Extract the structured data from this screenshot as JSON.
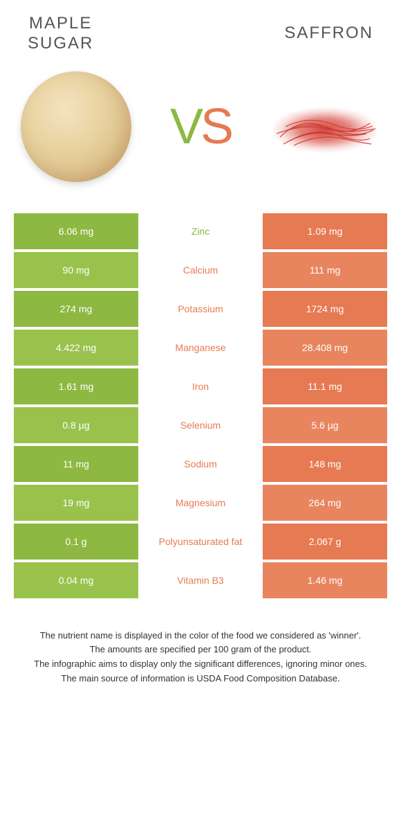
{
  "colors": {
    "green": "#8db842",
    "green_alt": "#99c24d",
    "orange": "#e67a52",
    "orange_alt": "#e8855f",
    "mid_text_green": "#8db842",
    "mid_text_orange": "#e67a52"
  },
  "header": {
    "left_title": "MAPLE\nSUGAR",
    "right_title": "SAFFRON",
    "v": "V",
    "s": "S"
  },
  "rows": [
    {
      "left": "6.06 mg",
      "mid": "Zinc",
      "right": "1.09 mg",
      "winner": "left"
    },
    {
      "left": "90 mg",
      "mid": "Calcium",
      "right": "111 mg",
      "winner": "right"
    },
    {
      "left": "274 mg",
      "mid": "Potassium",
      "right": "1724 mg",
      "winner": "right"
    },
    {
      "left": "4.422 mg",
      "mid": "Manganese",
      "right": "28.408 mg",
      "winner": "right"
    },
    {
      "left": "1.61 mg",
      "mid": "Iron",
      "right": "11.1 mg",
      "winner": "right"
    },
    {
      "left": "0.8 µg",
      "mid": "Selenium",
      "right": "5.6 µg",
      "winner": "right"
    },
    {
      "left": "11 mg",
      "mid": "Sodium",
      "right": "148 mg",
      "winner": "right"
    },
    {
      "left": "19 mg",
      "mid": "Magnesium",
      "right": "264 mg",
      "winner": "right"
    },
    {
      "left": "0.1 g",
      "mid": "Polyunsaturated fat",
      "right": "2.067 g",
      "winner": "right"
    },
    {
      "left": "0.04 mg",
      "mid": "Vitamin B3",
      "right": "1.46 mg",
      "winner": "right"
    }
  ],
  "footer": {
    "line1": "The nutrient name is displayed in the color of the food we considered as 'winner'.",
    "line2": "The amounts are specified per 100 gram of the product.",
    "line3": "The infographic aims to display only the significant differences, ignoring minor ones.",
    "line4": "The main source of information is USDA Food Composition Database."
  }
}
